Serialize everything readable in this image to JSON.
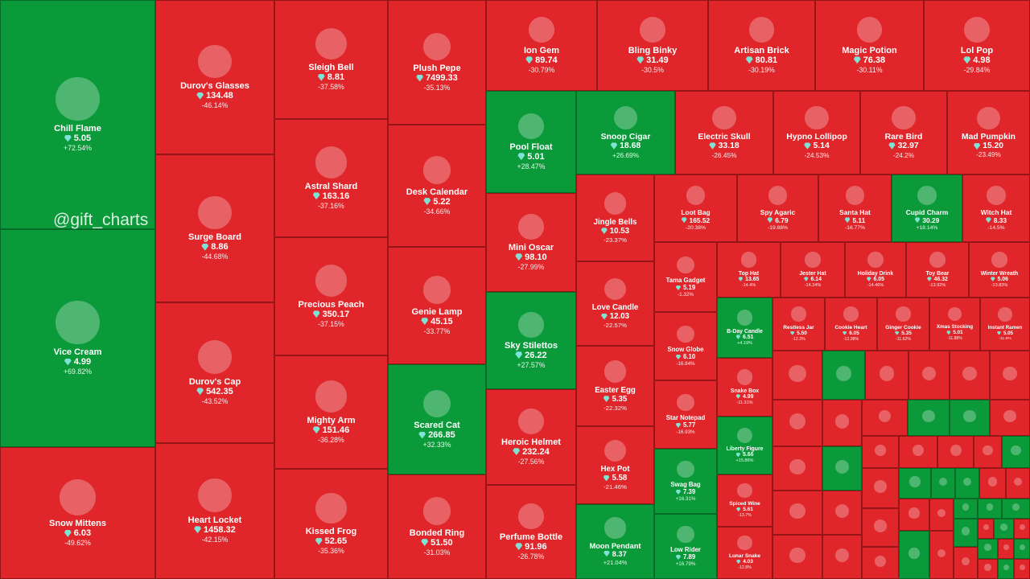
{
  "watermark": "@gift_charts",
  "tiles": [
    {
      "name": "Chill Flame",
      "price": "5.05",
      "change": "+72.54%"
    },
    {
      "name": "Vice Cream",
      "price": "4.99",
      "change": "+69.82%"
    },
    {
      "name": "Snow Mittens",
      "price": "6.03",
      "change": "-49.62%"
    },
    {
      "name": "Durov's Glasses",
      "price": "134.48",
      "change": "-46.14%"
    },
    {
      "name": "Surge Board",
      "price": "8.86",
      "change": "-44.68%"
    },
    {
      "name": "Durov's Cap",
      "price": "542.35",
      "change": "-43.52%"
    },
    {
      "name": "Heart Locket",
      "price": "1458.32",
      "change": "-42.15%"
    },
    {
      "name": "Sleigh Bell",
      "price": "8.81",
      "change": "-37.58%"
    },
    {
      "name": "Astral Shard",
      "price": "163.16",
      "change": "-37.16%"
    },
    {
      "name": "Precious Peach",
      "price": "350.17",
      "change": "-37.15%"
    },
    {
      "name": "Mighty Arm",
      "price": "151.46",
      "change": "-36.28%"
    },
    {
      "name": "Kissed Frog",
      "price": "52.65",
      "change": "-35.36%"
    },
    {
      "name": "Plush Pepe",
      "price": "7499.33",
      "change": "-35.13%"
    },
    {
      "name": "Desk Calendar",
      "price": "5.22",
      "change": "-34.66%"
    },
    {
      "name": "Genie Lamp",
      "price": "45.15",
      "change": "-33.77%"
    },
    {
      "name": "Scared Cat",
      "price": "266.85",
      "change": "+32.33%"
    },
    {
      "name": "Bonded Ring",
      "price": "51.50",
      "change": "-31.03%"
    },
    {
      "name": "Ion Gem",
      "price": "89.74",
      "change": "-30.79%"
    },
    {
      "name": "Bling Binky",
      "price": "31.49",
      "change": "-30.5%"
    },
    {
      "name": "Artisan Brick",
      "price": "80.81",
      "change": "-30.19%"
    },
    {
      "name": "Magic Potion",
      "price": "76.38",
      "change": "-30.11%"
    },
    {
      "name": "Lol Pop",
      "price": "4.98",
      "change": "-29.84%"
    },
    {
      "name": "Pool Float",
      "price": "5.01",
      "change": "+28.47%"
    },
    {
      "name": "Mini Oscar",
      "price": "98.10",
      "change": "-27.99%"
    },
    {
      "name": "Sky Stilettos",
      "price": "26.22",
      "change": "+27.57%"
    },
    {
      "name": "Heroic Helmet",
      "price": "232.24",
      "change": "-27.56%"
    },
    {
      "name": "Perfume Bottle",
      "price": "91.96",
      "change": "-26.78%"
    },
    {
      "name": "Snoop Cigar",
      "price": "18.68",
      "change": "+26.69%"
    },
    {
      "name": "Electric Skull",
      "price": "33.18",
      "change": "-26.45%"
    },
    {
      "name": "Hypno Lollipop",
      "price": "5.14",
      "change": "-24.53%"
    },
    {
      "name": "Rare Bird",
      "price": "32.97",
      "change": "-24.2%"
    },
    {
      "name": "Mad Pumpkin",
      "price": "15.20",
      "change": "-23.49%"
    },
    {
      "name": "Jingle Bells",
      "price": "10.53",
      "change": "-23.37%"
    },
    {
      "name": "Love Candle",
      "price": "12.03",
      "change": "-22.57%"
    },
    {
      "name": "Easter Egg",
      "price": "5.35",
      "change": "-22.32%"
    },
    {
      "name": "Hex Pot",
      "price": "5.58",
      "change": "-21.46%"
    },
    {
      "name": "Moon Pendant",
      "price": "8.37",
      "change": "+21.04%"
    },
    {
      "name": "Loot Bag",
      "price": "165.52",
      "change": "-20.38%"
    },
    {
      "name": "Spy Agaric",
      "price": "6.79",
      "change": "-19.88%"
    },
    {
      "name": "Santa Hat",
      "price": "5.11",
      "change": "-16.77%"
    },
    {
      "name": "Cupid Charm",
      "price": "30.29",
      "change": "+18.14%"
    },
    {
      "name": "Witch Hat",
      "price": "8.33",
      "change": "-14.5%"
    },
    {
      "name": "Tama Gadget",
      "price": "5.19",
      "change": "-1.32%"
    },
    {
      "name": "Snow Globe",
      "price": "6.10",
      "change": "-16.84%"
    },
    {
      "name": "Star Notepad",
      "price": "5.77",
      "change": "-16.93%"
    },
    {
      "name": "Swag Bag",
      "price": "7.39",
      "change": "+16.31%"
    },
    {
      "name": "Low Rider",
      "price": "7.89",
      "change": "+16.79%"
    },
    {
      "name": "Top Hat",
      "price": "13.65",
      "change": "-14.4%"
    },
    {
      "name": "Jester Hat",
      "price": "6.14",
      "change": "-14.24%"
    },
    {
      "name": "Holiday Drink",
      "price": "6.05",
      "change": "-14.46%"
    },
    {
      "name": "Toy Bear",
      "price": "46.32",
      "change": "-13.92%"
    },
    {
      "name": "Winter Wreath",
      "price": "5.06",
      "change": "-13.83%"
    },
    {
      "name": "B-Day Candle",
      "price": "6.51",
      "change": "+4.19%"
    },
    {
      "name": "Snake Box",
      "price": "4.99",
      "change": "-11.31%"
    },
    {
      "name": "Liberty Figure",
      "price": "5.66",
      "change": "+15.86%"
    },
    {
      "name": "Spiced Wine",
      "price": "5.61",
      "change": "-13.7%"
    },
    {
      "name": "Lunar Snake",
      "price": "4.03",
      "change": "-12.8%"
    },
    {
      "name": "Restless Jar",
      "price": "5.50",
      "change": "-12.3%"
    },
    {
      "name": "Cookie Heart",
      "price": "6.05",
      "change": "-12.38%"
    },
    {
      "name": "Ginger Cookie",
      "price": "5.35",
      "change": "-11.62%"
    },
    {
      "name": "Xmas Stocking",
      "price": "5.01",
      "change": "-11.88%"
    },
    {
      "name": "Instant Ramen",
      "price": "5.05",
      "change": "-11.8%"
    }
  ]
}
